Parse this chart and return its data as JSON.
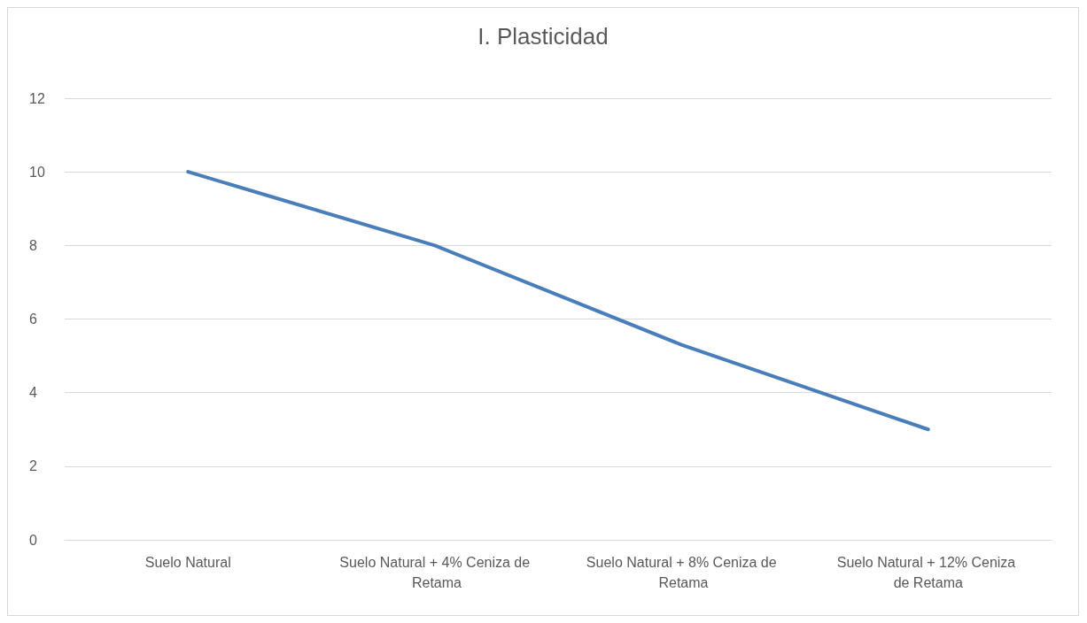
{
  "chart_data": {
    "type": "line",
    "title": "I. Plasticidad",
    "categories": [
      "Suelo Natural",
      "Suelo Natural + 4% Ceniza de Retama",
      "Suelo Natural + 8% Ceniza de Retama",
      "Suelo Natural + 12% Ceniza de Retama"
    ],
    "series": [
      {
        "color": "#4a7ebb",
        "values": [
          10,
          8,
          5.3,
          3
        ]
      }
    ],
    "ylim": [
      0,
      12
    ],
    "yticks": [
      0,
      2,
      4,
      6,
      8,
      10,
      12
    ],
    "grid": "y",
    "marker": "none",
    "line_style": "solid"
  }
}
